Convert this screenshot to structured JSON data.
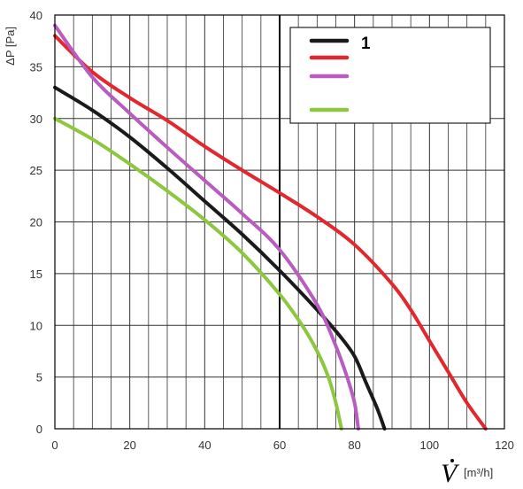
{
  "chart_data": {
    "type": "line",
    "ylabel": "ΔP [Pa]",
    "xlabel_symbol": "V",
    "xlabel_unit": "[m³/h]",
    "xlim": [
      0,
      120
    ],
    "ylim": [
      0,
      40
    ],
    "xticks": [
      0,
      20,
      40,
      60,
      80,
      100,
      120
    ],
    "yticks": [
      0,
      5,
      10,
      15,
      20,
      25,
      30,
      35,
      40
    ],
    "grid": true,
    "legend_position": "top-right",
    "series": [
      {
        "name": "1",
        "color": "#1a1a1a",
        "x": [
          0,
          10,
          20,
          30,
          40,
          50,
          60,
          70,
          76,
          80,
          83,
          86,
          88
        ],
        "y": [
          33,
          30.8,
          28.2,
          25.2,
          22,
          18.8,
          15.3,
          11.5,
          9,
          7,
          4.5,
          2,
          0
        ]
      },
      {
        "name": "",
        "color": "#e0282e",
        "x": [
          0,
          10,
          20,
          30,
          40,
          50,
          60,
          70,
          80,
          90,
          95,
          100,
          105,
          110,
          115
        ],
        "y": [
          38,
          34.5,
          32,
          29.8,
          27.3,
          25,
          22.8,
          20.5,
          17.8,
          14,
          11.5,
          8.5,
          5.5,
          2.5,
          0
        ]
      },
      {
        "name": "",
        "color": "#b85cc0",
        "x": [
          0,
          10,
          20,
          30,
          40,
          50,
          60,
          70,
          75,
          78,
          80,
          81
        ],
        "y": [
          39,
          34,
          30.5,
          27.2,
          24,
          20.8,
          17.3,
          12,
          8,
          5,
          2.5,
          0
        ]
      },
      {
        "name": "",
        "color": "#8dc63f",
        "x": [
          0,
          10,
          20,
          30,
          40,
          50,
          60,
          66,
          70,
          73,
          75,
          76.5
        ],
        "y": [
          30,
          28,
          25.6,
          23,
          20.2,
          17,
          13,
          10,
          7.5,
          5,
          2.5,
          0
        ]
      }
    ]
  }
}
